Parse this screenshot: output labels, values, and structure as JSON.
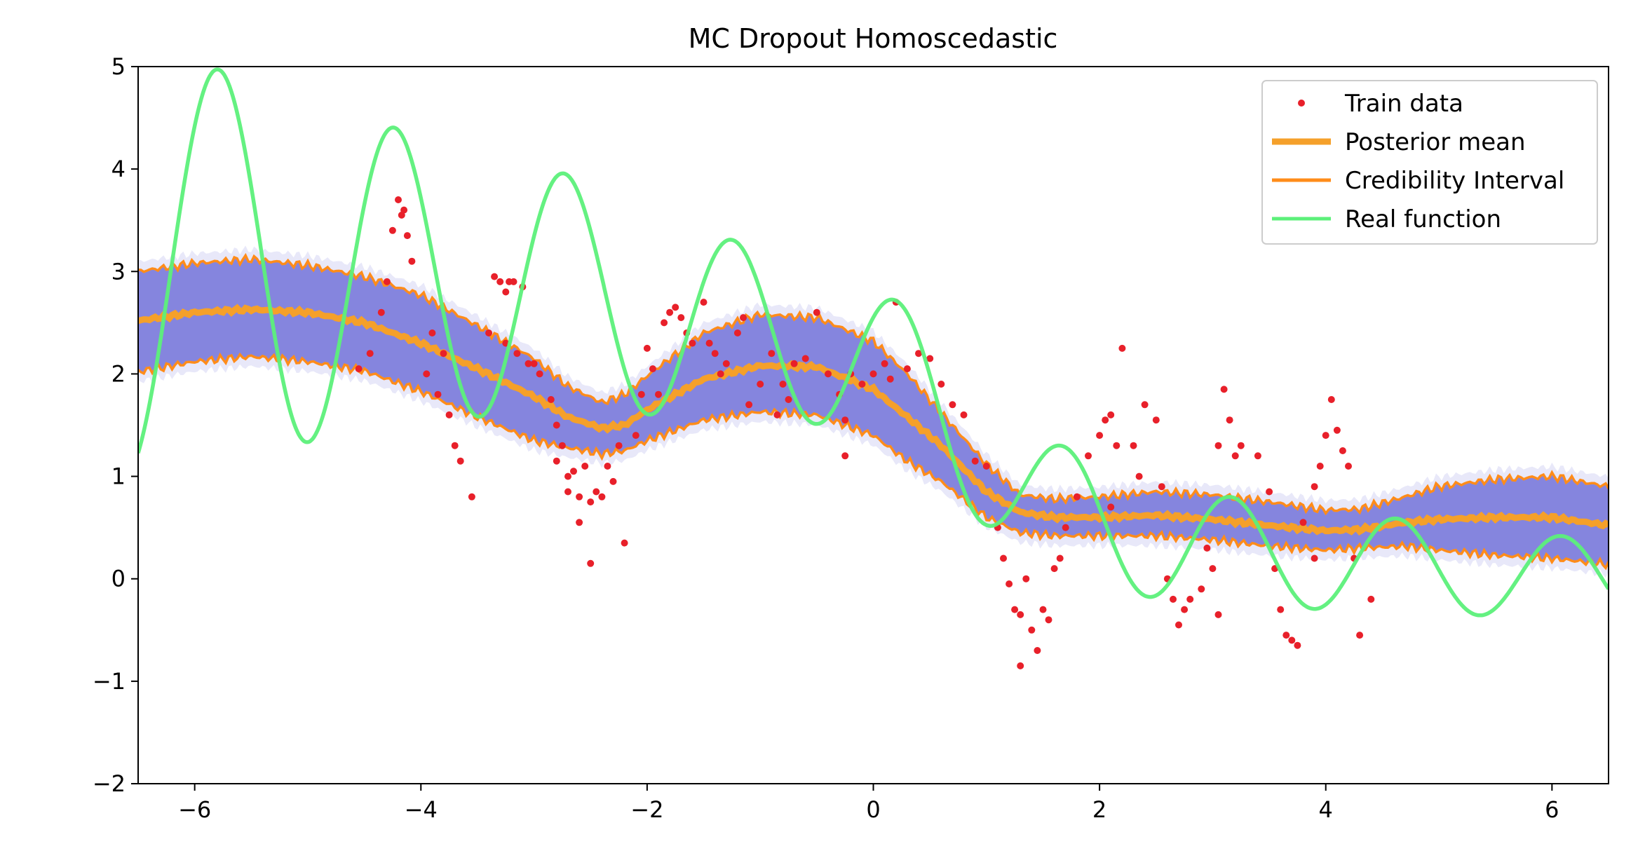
{
  "chart_data": {
    "type": "line",
    "title": "MC Dropout Homoscedastic",
    "xlabel": "",
    "ylabel": "",
    "xlim": [
      -6.5,
      6.5
    ],
    "ylim": [
      -2,
      5
    ],
    "x_ticks": [
      -6,
      -4,
      -2,
      0,
      2,
      4,
      6
    ],
    "x_tick_labels": [
      "−6",
      "−4",
      "−2",
      "0",
      "2",
      "4",
      "6"
    ],
    "y_ticks": [
      -2,
      -1,
      0,
      1,
      2,
      3,
      4,
      5
    ],
    "y_tick_labels": [
      "−2",
      "−1",
      "0",
      "1",
      "2",
      "3",
      "4",
      "5"
    ],
    "grid": false,
    "legend_position": "top-right",
    "legend": [
      {
        "label": "Train data",
        "style": "marker",
        "color": "#e8202a"
      },
      {
        "label": "Posterior mean",
        "style": "thick-line",
        "color": "#f5a02a"
      },
      {
        "label": "Credibility Interval",
        "style": "line",
        "color": "#ff8c1a"
      },
      {
        "label": "Real function",
        "style": "line",
        "color": "#5cf07a"
      }
    ],
    "colors": {
      "band": "#7f7fdc",
      "posterior_mean": "#f5a02a",
      "credibility": "#ff8c1a",
      "real": "#5cf07a",
      "train": "#e8202a"
    },
    "posterior_mean": {
      "x": [
        -6.5,
        -6.0,
        -5.5,
        -5.0,
        -4.5,
        -4.0,
        -3.5,
        -3.0,
        -2.7,
        -2.4,
        -2.2,
        -2.0,
        -1.5,
        -1.0,
        -0.5,
        0.0,
        0.3,
        0.6,
        1.0,
        1.3,
        1.6,
        2.0,
        2.5,
        3.0,
        3.5,
        4.0,
        4.3,
        4.7,
        5.0,
        5.5,
        6.0,
        6.5
      ],
      "y": [
        2.52,
        2.6,
        2.63,
        2.6,
        2.5,
        2.3,
        2.05,
        1.78,
        1.58,
        1.47,
        1.5,
        1.65,
        1.95,
        2.08,
        2.07,
        1.85,
        1.58,
        1.3,
        0.85,
        0.65,
        0.6,
        0.6,
        0.62,
        0.58,
        0.52,
        0.47,
        0.48,
        0.55,
        0.58,
        0.6,
        0.6,
        0.52
      ]
    },
    "credibility_upper": {
      "x": [
        -6.5,
        -6.0,
        -5.5,
        -5.0,
        -4.5,
        -4.0,
        -3.5,
        -3.0,
        -2.7,
        -2.4,
        -2.2,
        -2.0,
        -1.5,
        -1.0,
        -0.5,
        0.0,
        0.3,
        0.6,
        1.0,
        1.3,
        1.6,
        2.0,
        2.5,
        3.0,
        3.5,
        4.0,
        4.3,
        4.7,
        5.0,
        5.5,
        6.0,
        6.5
      ],
      "y": [
        3.0,
        3.08,
        3.12,
        3.06,
        2.95,
        2.77,
        2.47,
        2.15,
        1.88,
        1.72,
        1.8,
        1.98,
        2.4,
        2.58,
        2.55,
        2.32,
        2.0,
        1.62,
        1.12,
        0.82,
        0.78,
        0.8,
        0.85,
        0.82,
        0.75,
        0.67,
        0.68,
        0.8,
        0.9,
        0.97,
        1.0,
        0.9
      ]
    },
    "credibility_lower": {
      "x": [
        -6.5,
        -6.0,
        -5.5,
        -5.0,
        -4.5,
        -4.0,
        -3.5,
        -3.0,
        -2.7,
        -2.4,
        -2.2,
        -2.0,
        -1.5,
        -1.0,
        -0.5,
        0.0,
        0.3,
        0.6,
        1.0,
        1.3,
        1.6,
        2.0,
        2.5,
        3.0,
        3.5,
        4.0,
        4.3,
        4.7,
        5.0,
        5.5,
        6.0,
        6.5
      ],
      "y": [
        2.02,
        2.12,
        2.17,
        2.12,
        2.03,
        1.83,
        1.58,
        1.35,
        1.28,
        1.22,
        1.25,
        1.35,
        1.55,
        1.63,
        1.6,
        1.4,
        1.15,
        0.95,
        0.6,
        0.45,
        0.42,
        0.42,
        0.42,
        0.38,
        0.32,
        0.28,
        0.3,
        0.32,
        0.28,
        0.23,
        0.2,
        0.14
      ]
    },
    "real_function": {
      "x_range": [
        -6.5,
        6.5
      ],
      "samples": 1400
    },
    "train_data": {
      "x": [
        -4.2,
        -4.17,
        -4.12,
        -4.25,
        -4.3,
        -4.08,
        -4.35,
        -4.45,
        -4.55,
        -3.95,
        -3.85,
        -3.75,
        -3.7,
        -3.65,
        -3.55,
        -3.8,
        -3.9,
        -3.4,
        -3.35,
        -3.3,
        -3.25,
        -3.22,
        -3.18,
        -3.1,
        -3.05,
        -3.0,
        -2.95,
        -3.15,
        -2.85,
        -2.8,
        -2.75,
        -2.7,
        -2.65,
        -2.6,
        -2.55,
        -2.5,
        -2.45,
        -2.4,
        -2.35,
        -2.3,
        -2.25,
        -2.1,
        -2.05,
        -2.0,
        -1.95,
        -1.9,
        -1.85,
        -1.8,
        -1.75,
        -1.7,
        -1.65,
        -1.6,
        -1.5,
        -1.45,
        -1.4,
        -1.35,
        -1.3,
        -1.2,
        -1.15,
        -1.1,
        -1.0,
        -0.9,
        -0.85,
        -0.8,
        -0.75,
        -0.7,
        -0.6,
        -0.5,
        -0.4,
        -0.3,
        -0.25,
        -0.2,
        -0.1,
        0.0,
        0.1,
        0.2,
        0.3,
        0.4,
        0.5,
        0.6,
        0.7,
        0.8,
        0.9,
        1.0,
        1.1,
        1.15,
        1.2,
        1.25,
        1.3,
        1.35,
        1.4,
        1.45,
        1.5,
        1.55,
        1.6,
        1.65,
        1.7,
        1.8,
        1.9,
        2.0,
        2.05,
        2.1,
        2.15,
        2.2,
        2.3,
        2.35,
        2.4,
        2.5,
        2.55,
        2.6,
        2.65,
        2.7,
        2.75,
        2.8,
        2.9,
        2.95,
        3.0,
        3.05,
        3.1,
        3.15,
        3.2,
        3.25,
        3.4,
        3.5,
        3.55,
        3.6,
        3.65,
        3.7,
        3.75,
        3.8,
        3.9,
        3.95,
        4.0,
        4.05,
        4.1,
        4.15,
        4.2,
        4.25,
        4.3,
        4.4,
        -2.7,
        -2.8,
        -2.2,
        -2.5,
        -2.6,
        0.15,
        -0.25,
        1.3,
        2.1,
        3.05,
        3.9,
        -3.25,
        -4.15
      ],
      "y": [
        3.7,
        3.55,
        3.35,
        3.4,
        2.9,
        3.1,
        2.6,
        2.2,
        2.05,
        2.0,
        1.8,
        1.6,
        1.3,
        1.15,
        0.8,
        2.2,
        2.4,
        2.4,
        2.95,
        2.9,
        2.8,
        2.9,
        2.9,
        2.85,
        2.1,
        2.1,
        2.0,
        2.2,
        1.75,
        1.5,
        1.3,
        1.0,
        1.05,
        0.8,
        1.1,
        0.75,
        0.85,
        0.8,
        1.1,
        0.95,
        1.3,
        1.4,
        1.8,
        2.25,
        2.05,
        1.8,
        2.5,
        2.6,
        2.65,
        2.55,
        2.4,
        2.3,
        2.7,
        2.3,
        2.2,
        2.0,
        2.1,
        2.4,
        2.55,
        1.7,
        1.9,
        2.2,
        1.6,
        1.9,
        1.75,
        2.1,
        2.15,
        2.6,
        2.0,
        1.8,
        1.55,
        2.0,
        1.9,
        2.0,
        2.1,
        2.7,
        2.05,
        2.2,
        2.15,
        1.9,
        1.7,
        1.6,
        1.15,
        1.1,
        0.5,
        0.2,
        -0.05,
        -0.3,
        -0.35,
        0.0,
        -0.5,
        -0.7,
        -0.3,
        -0.4,
        0.1,
        0.2,
        0.5,
        0.8,
        1.2,
        1.4,
        1.55,
        1.6,
        1.3,
        2.25,
        1.3,
        1.0,
        1.7,
        1.55,
        0.9,
        0.0,
        -0.2,
        -0.45,
        -0.3,
        -0.2,
        -0.1,
        0.3,
        0.1,
        1.3,
        1.85,
        1.55,
        1.2,
        1.3,
        1.2,
        0.85,
        0.1,
        -0.3,
        -0.55,
        -0.6,
        -0.65,
        0.55,
        0.9,
        1.1,
        1.4,
        1.75,
        1.45,
        1.25,
        1.1,
        0.2,
        -0.55,
        -0.2,
        0.85,
        1.15,
        0.35,
        0.15,
        0.55,
        1.95,
        1.2,
        -0.85,
        0.7,
        -0.35,
        0.2,
        2.3,
        3.6
      ]
    }
  }
}
